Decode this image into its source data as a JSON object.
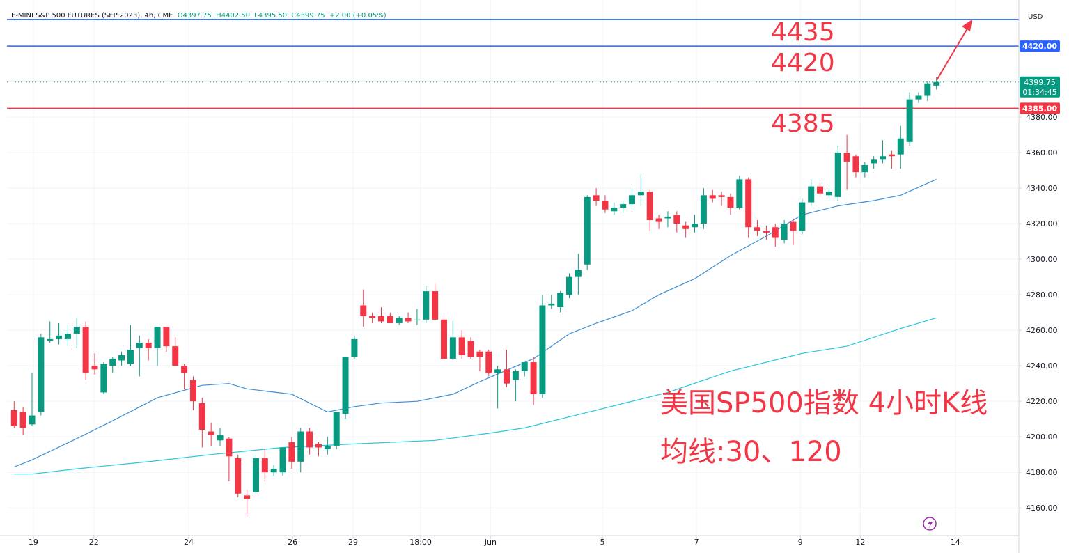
{
  "chart_data": {
    "type": "candlestick",
    "header": {
      "title": "E-MINI S&P 500 FUTURES (SEP 2023), 4h, CME",
      "ohlc": [
        "O4397.75",
        "H4402.50",
        "L4395.50",
        "C4399.75",
        "+2.00 (+0.05%)"
      ]
    },
    "currency": "USD",
    "up_color": "#089981",
    "down_color": "#f23645",
    "open": [
      4215,
      4214,
      4207,
      4214,
      4254,
      4255,
      4255,
      4258,
      4262,
      4240,
      4225,
      4240,
      4243,
      4241,
      4250,
      4253,
      4250,
      4262,
      4251,
      4240,
      4232,
      4219,
      4203,
      4198,
      4199,
      4188,
      4167,
      4169,
      4188,
      4180,
      4180,
      4197,
      4186,
      4203,
      4196,
      4193,
      4195,
      4213,
      4245,
      4274,
      4268,
      4268,
      4268,
      4264,
      4267,
      4266,
      4266,
      4282,
      4266,
      4244,
      4256,
      4254,
      4248,
      4248,
      4236,
      4238,
      4232,
      4237,
      4242,
      4224,
      4274,
      4273,
      4280,
      4290,
      4297,
      4336,
      4333,
      4327,
      4329,
      4331,
      4336,
      4338,
      4323,
      4323,
      4325,
      4319,
      4318,
      4320,
      4336,
      4336,
      4335,
      4329,
      4345,
      4318,
      4316,
      4318,
      4311,
      4321,
      4316,
      4332,
      4341,
      4336,
      4335,
      4360,
      4358,
      4349,
      4354,
      4356,
      4359,
      4359,
      4366,
      4390,
      4392,
      4397.75
    ],
    "high": [
      4220,
      4217,
      4236,
      4258,
      4265,
      4264,
      4263,
      4267,
      4265,
      4247,
      4242,
      4245,
      4248,
      4263,
      4257,
      4255,
      4262,
      4262,
      4256,
      4241,
      4234,
      4222,
      4208,
      4205,
      4200,
      4190,
      4170,
      4190,
      4193,
      4184,
      4194,
      4200,
      4205,
      4205,
      4197,
      4200,
      4214,
      4245,
      4257,
      4283,
      4270,
      4273,
      4270,
      4268,
      4270,
      4272,
      4285,
      4286,
      4268,
      4265,
      4260,
      4256,
      4249,
      4249,
      4240,
      4249,
      4238,
      4242,
      4245,
      4280,
      4280,
      4282,
      4292,
      4303,
      4336,
      4340,
      4336,
      4332,
      4333,
      4340,
      4348,
      4339,
      4325,
      4327,
      4327,
      4321,
      4325,
      4340,
      4339,
      4338,
      4337,
      4347,
      4346,
      4322,
      4319,
      4320,
      4322,
      4323,
      4334,
      4345,
      4343,
      4340,
      4364,
      4370,
      4359,
      4355,
      4358,
      4367,
      4361,
      4375,
      4394,
      4394,
      4400,
      4402.5
    ],
    "low": [
      4205,
      4201,
      4206,
      4212,
      4253,
      4252,
      4251,
      4250,
      4232,
      4235,
      4224,
      4236,
      4240,
      4240,
      4234,
      4243,
      4240,
      4248,
      4240,
      4227,
      4215,
      4194,
      4195,
      4195,
      4175,
      4166,
      4155,
      4168,
      4175,
      4178,
      4178,
      4182,
      4180,
      4190,
      4189,
      4190,
      4193,
      4210,
      4244,
      4262,
      4264,
      4264,
      4264,
      4263,
      4264,
      4263,
      4264,
      4266,
      4243,
      4243,
      4244,
      4244,
      4237,
      4234,
      4216,
      4228,
      4220,
      4234,
      4218,
      4222,
      4272,
      4270,
      4278,
      4280,
      4294,
      4330,
      4326,
      4325,
      4326,
      4328,
      4330,
      4316,
      4317,
      4318,
      4315,
      4312,
      4315,
      4317,
      4332,
      4330,
      4325,
      4328,
      4312,
      4313,
      4311,
      4307,
      4309,
      4308,
      4314,
      4330,
      4335,
      4334,
      4333,
      4339,
      4346,
      4346,
      4351,
      4354,
      4351,
      4351,
      4364,
      4388,
      4389,
      4395.5
    ],
    "close": [
      4206,
      4205,
      4212,
      4256,
      4255,
      4257,
      4258,
      4262,
      4236,
      4238,
      4241,
      4244,
      4246,
      4249,
      4253,
      4250,
      4262,
      4251,
      4240,
      4236,
      4220,
      4204,
      4201,
      4201,
      4189,
      4168,
      4165,
      4188,
      4180,
      4182,
      4194,
      4186,
      4203,
      4194,
      4194,
      4195,
      4214,
      4245,
      4255,
      4268,
      4267,
      4265,
      4264,
      4267,
      4265,
      4266,
      4282,
      4266,
      4244,
      4256,
      4246,
      4245,
      4245,
      4236,
      4238,
      4230,
      4237,
      4242,
      4224,
      4274,
      4275,
      4281,
      4290,
      4294,
      4335,
      4333,
      4328,
      4329,
      4331,
      4336,
      4338,
      4322,
      4321,
      4324,
      4320,
      4317,
      4320,
      4336,
      4334,
      4335,
      4329,
      4345,
      4318,
      4316,
      4315,
      4312,
      4320,
      4316,
      4332,
      4341,
      4337,
      4338,
      4360,
      4355,
      4349,
      4353,
      4356,
      4358,
      4358,
      4368,
      4390,
      4392,
      4399,
      4399.75
    ],
    "lines": [
      {
        "color": "#3d8fd6",
        "x": [
          0,
          2,
          7,
          11,
          16,
          21,
          24,
          26,
          31,
          35,
          38,
          41,
          45,
          49,
          52,
          58,
          62,
          65,
          69,
          72,
          76,
          80,
          84,
          88,
          92,
          96,
          99,
          103
        ],
        "values": [
          4183,
          4187,
          4199,
          4209,
          4222,
          4229,
          4230,
          4227,
          4224,
          4214,
          4217,
          4219,
          4220,
          4224,
          4231,
          4244,
          4258,
          4264,
          4271,
          4280,
          4289,
          4302,
          4313,
          4325,
          4330,
          4333,
          4336,
          4345
        ]
      },
      {
        "color": "#26c6da",
        "x": [
          0,
          2,
          7,
          15,
          22,
          30,
          38,
          47,
          53,
          57,
          65,
          73,
          80,
          88,
          93,
          96,
          99,
          103
        ],
        "values": [
          4179,
          4179,
          4182,
          4186,
          4190,
          4194,
          4196,
          4198,
          4202,
          4205,
          4215,
          4225,
          4237,
          4247,
          4251,
          4256,
          4261,
          4267
        ]
      }
    ],
    "hlines": [
      {
        "value": 4435,
        "color": "#2962ff"
      },
      {
        "value": 4420,
        "color": "#2962ff",
        "label": "4420.00"
      },
      {
        "value": 4385,
        "color": "#f23645",
        "label": "4385.00"
      }
    ],
    "last_price": {
      "value": 4399.75,
      "label": "4399.75",
      "countdown": "01:34:45",
      "color": "#089981"
    },
    "annotations": [
      "4435",
      "4420",
      "4385",
      "美国SP500指数 4小时K线",
      "均线:30、120"
    ],
    "annotation_color": "#f23645",
    "grid": true,
    "xlim": [
      -0.8,
      112.2
    ],
    "xticks": [
      {
        "value": 2.15,
        "label": "19"
      },
      {
        "value": 8.9,
        "label": "22"
      },
      {
        "value": 19.5,
        "label": "24"
      },
      {
        "value": 31.1,
        "label": "26"
      },
      {
        "value": 37.85,
        "label": "29"
      },
      {
        "value": 45.4,
        "label": "18:00"
      },
      {
        "value": 53.2,
        "label": "Jun"
      },
      {
        "value": 65.7,
        "label": "5"
      },
      {
        "value": 76.2,
        "label": "7"
      },
      {
        "value": 87.8,
        "label": "9"
      },
      {
        "value": 94.5,
        "label": "12"
      },
      {
        "value": 105.1,
        "label": "14"
      }
    ],
    "ylim": [
      4144,
      4442
    ],
    "yticks": [
      {
        "value": 4160,
        "label": "4160.00"
      },
      {
        "value": 4180,
        "label": "4180.00"
      },
      {
        "value": 4200,
        "label": "4200.00"
      },
      {
        "value": 4220,
        "label": "4220.00"
      },
      {
        "value": 4240,
        "label": "4240.00"
      },
      {
        "value": 4260,
        "label": "4260.00"
      },
      {
        "value": 4280,
        "label": "4280.00"
      },
      {
        "value": 4300,
        "label": "4300.00"
      },
      {
        "value": 4320,
        "label": "4320.00"
      },
      {
        "value": 4340,
        "label": "4340.00"
      },
      {
        "value": 4360,
        "label": "4360.00"
      },
      {
        "value": 4380,
        "label": "4380.00"
      }
    ]
  }
}
